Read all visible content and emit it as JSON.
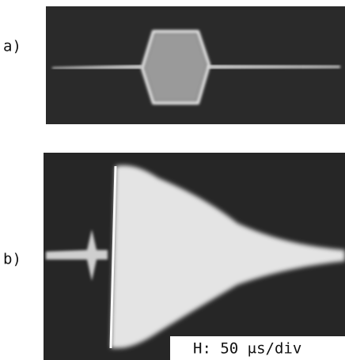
{
  "panels": [
    {
      "label": "a)"
    },
    {
      "label": "b)",
      "annotation": "H: 50 μs/div"
    }
  ]
}
